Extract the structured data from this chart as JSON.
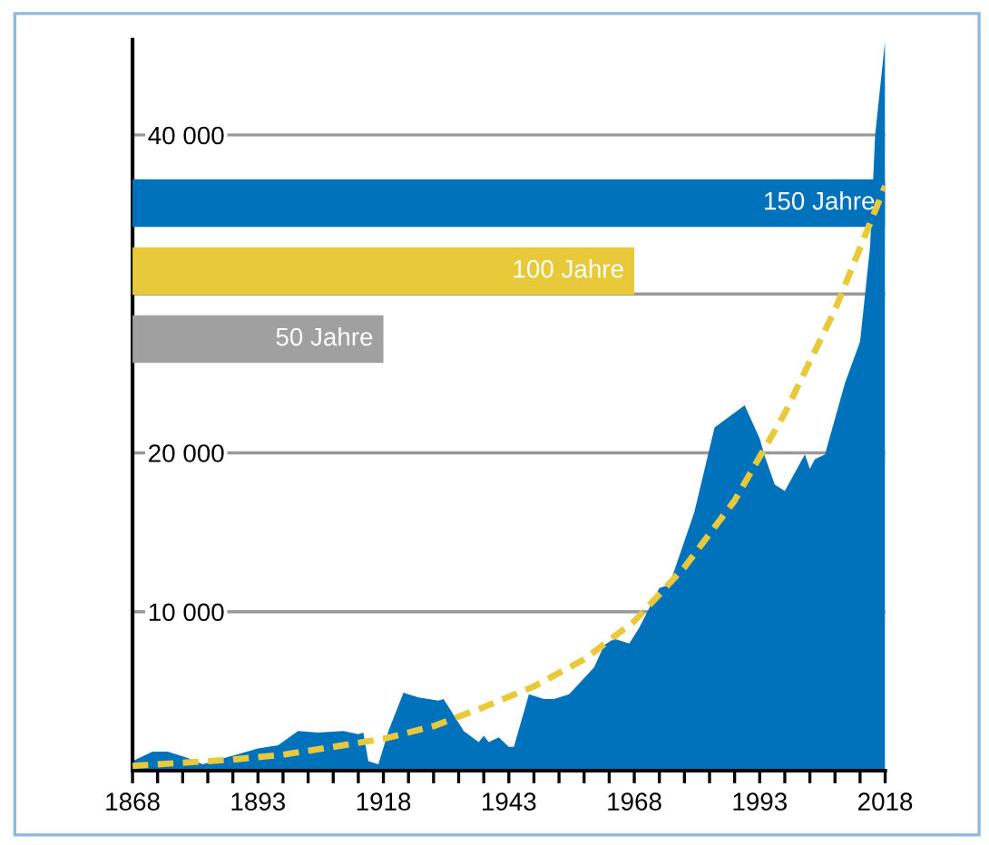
{
  "chart_data": {
    "type": "area",
    "series": [
      {
        "color": "#0072bc",
        "x": [
          1868,
          1872,
          1875,
          1879,
          1882,
          1893,
          1897,
          1901,
          1905,
          1910,
          1913,
          1914,
          1915,
          1917,
          1919,
          1922,
          1925,
          1929,
          1930,
          1934,
          1937,
          1938,
          1939,
          1941,
          1943,
          1944,
          1946,
          1947,
          1950,
          1952,
          1955,
          1960,
          1962,
          1964,
          1967,
          1969,
          1973,
          1975,
          1980,
          1984,
          1990,
          1993,
          1994,
          1996,
          1998,
          2002,
          2003,
          2004,
          2006,
          2010,
          2013,
          2015,
          2016,
          2017,
          2018
        ],
        "values": [
          600,
          1200,
          1200,
          800,
          400,
          1400,
          1600,
          2500,
          2400,
          2500,
          2300,
          2400,
          600,
          400,
          2500,
          4900,
          4600,
          4400,
          4500,
          2500,
          1800,
          2200,
          1800,
          2100,
          1500,
          1500,
          3700,
          4800,
          4500,
          4500,
          4800,
          6500,
          7900,
          8300,
          8000,
          9000,
          11500,
          11700,
          16300,
          21600,
          23000,
          20900,
          19800,
          18000,
          17600,
          19900,
          19000,
          19600,
          19900,
          24400,
          27000,
          33000,
          40000,
          43000,
          46000
        ]
      },
      {
        "type": "line",
        "color": "#e8c93a",
        "line_style": "dashed",
        "marker": "none",
        "x": [
          1868,
          1878,
          1888,
          1898,
          1908,
          1918,
          1928,
          1938,
          1948,
          1958,
          1968,
          1978,
          1988,
          1998,
          2008,
          2018
        ],
        "values": [
          300,
          500,
          700,
          1000,
          1500,
          2000,
          2800,
          4000,
          5300,
          7000,
          9400,
          12800,
          17000,
          22500,
          29000,
          36800
        ]
      }
    ],
    "bands": [
      {
        "axis": "x",
        "from": 1868,
        "to": 2018,
        "label": "150 Jahre",
        "color": "#0072bc"
      },
      {
        "axis": "x",
        "from": 1868,
        "to": 1968,
        "label": "100 Jahre",
        "color": "#e8c93a"
      },
      {
        "axis": "x",
        "from": 1868,
        "to": 1918,
        "label": "50 Jahre",
        "color": "#a0a0a0"
      }
    ],
    "xlim": [
      1868,
      2018
    ],
    "xticks": [
      1868,
      {
        "value": 1873,
        "label": null
      },
      {
        "value": 1878,
        "label": null
      },
      {
        "value": 1883,
        "label": null
      },
      {
        "value": 1888,
        "label": null
      },
      1893,
      {
        "value": 1898,
        "label": null
      },
      {
        "value": 1903,
        "label": null
      },
      {
        "value": 1908,
        "label": null
      },
      {
        "value": 1913,
        "label": null
      },
      1918,
      {
        "value": 1923,
        "label": null
      },
      {
        "value": 1928,
        "label": null
      },
      {
        "value": 1933,
        "label": null
      },
      {
        "value": 1938,
        "label": null
      },
      1943,
      {
        "value": 1948,
        "label": null
      },
      {
        "value": 1953,
        "label": null
      },
      {
        "value": 1958,
        "label": null
      },
      {
        "value": 1963,
        "label": null
      },
      1968,
      {
        "value": 1973,
        "label": null
      },
      {
        "value": 1978,
        "label": null
      },
      {
        "value": 1983,
        "label": null
      },
      {
        "value": 1988,
        "label": null
      },
      1993,
      {
        "value": 1998,
        "label": null
      },
      {
        "value": 2003,
        "label": null
      },
      {
        "value": 2008,
        "label": null
      },
      {
        "value": 2013,
        "label": null
      },
      2018
    ],
    "ylim": [
      0,
      46000
    ],
    "yticks": [
      {
        "value": 10000,
        "label": "10 000"
      },
      {
        "value": 20000,
        "label": "20 000"
      },
      {
        "value": 30000,
        "label": null
      },
      {
        "value": 40000,
        "label": "40 000"
      }
    ],
    "grid": "y",
    "legend": false
  }
}
